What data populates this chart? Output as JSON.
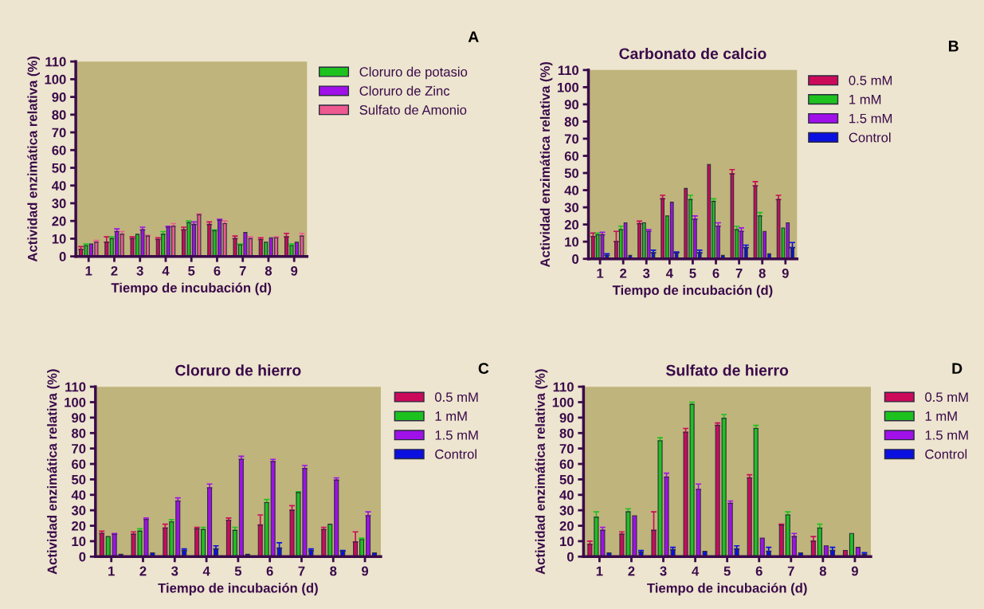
{
  "chart_data": [
    {
      "type": "bar",
      "xlabel": "Tiempo de incubación (d)",
      "ylabel": "Actividad enzimática relativa (%)",
      "annotations": [
        "A"
      ],
      "categories": [
        "1",
        "2",
        "3",
        "4",
        "5",
        "6",
        "7",
        "8",
        "9"
      ],
      "ylim": [
        0,
        110
      ],
      "yticks": [
        0,
        10,
        20,
        30,
        40,
        50,
        60,
        70,
        80,
        90,
        100,
        110
      ],
      "legend": "right",
      "grid": false,
      "series": [
        {
          "color": "#cc0a5a",
          "values": [
            4,
            8,
            10,
            9.5,
            15,
            18,
            10,
            9.5,
            11
          ],
          "errors": [
            [
              4,
              5.5
            ],
            [
              8,
              11
            ],
            [
              10,
              11
            ],
            [
              9.5,
              10.5
            ],
            [
              15,
              16.5
            ],
            [
              18,
              19.5
            ],
            [
              10,
              11.5
            ],
            [
              9.5,
              10.5
            ],
            [
              11,
              13
            ]
          ]
        },
        {
          "name": "Cloruro de potasio",
          "color": "#1ec21e",
          "values": [
            6,
            10,
            12.5,
            12.5,
            19,
            14.5,
            6.5,
            8,
            6
          ],
          "errors": [
            [
              6,
              7
            ],
            [
              10,
              11
            ],
            null,
            [
              12.5,
              14
            ],
            [
              19,
              20
            ],
            [
              14.5,
              15
            ],
            [
              6.5,
              7
            ],
            null,
            [
              6,
              7
            ]
          ]
        },
        {
          "name": "Cloruro de Zinc",
          "color": "#a010e8",
          "values": [
            7,
            14,
            15,
            16.5,
            18,
            20.5,
            13.5,
            10.5,
            8
          ],
          "errors": [
            null,
            [
              14,
              15.5
            ],
            [
              15,
              16.5
            ],
            [
              16.5,
              17
            ],
            [
              18,
              19.5
            ],
            [
              20.5,
              21
            ],
            null,
            null,
            null
          ]
        },
        {
          "name": "Sulfato de Amonio",
          "color": "#ee5a90",
          "values": [
            8,
            12.5,
            11.5,
            17,
            23.5,
            18.5,
            10,
            10.5,
            11.5
          ],
          "errors": [
            [
              8,
              9
            ],
            [
              12.5,
              14
            ],
            [
              11.5,
              12
            ],
            [
              17,
              18.5
            ],
            [
              23.5,
              24
            ],
            [
              18.5,
              20
            ],
            [
              10,
              11
            ],
            [
              10.5,
              11
            ],
            [
              11.5,
              13
            ]
          ]
        }
      ]
    },
    {
      "type": "bar",
      "title": "Carbonato de calcio",
      "xlabel": "Tiempo de incubación (d)",
      "ylabel": "Actividad enzimática relativa (%)",
      "annotations": [
        "B"
      ],
      "categories": [
        "1",
        "2",
        "3",
        "4",
        "5",
        "6",
        "7",
        "8",
        "9"
      ],
      "ylim": [
        0,
        110
      ],
      "yticks": [
        0,
        10,
        20,
        30,
        40,
        50,
        60,
        70,
        80,
        90,
        100,
        110
      ],
      "legend": "right",
      "grid": false,
      "series": [
        {
          "name": "0.5 mM",
          "color": "#cc0a5a",
          "values": [
            13,
            10,
            20.5,
            35,
            41,
            55,
            49.5,
            42.5,
            34.5
          ],
          "errors": [
            [
              13,
              15
            ],
            [
              10,
              16
            ],
            [
              20.5,
              22
            ],
            [
              35,
              37
            ],
            null,
            null,
            [
              49.5,
              52
            ],
            [
              42.5,
              45
            ],
            [
              34.5,
              37
            ]
          ]
        },
        {
          "name": "1 mM",
          "color": "#1ec21e",
          "values": [
            14,
            17,
            21,
            25,
            34.5,
            33.5,
            17,
            25,
            18
          ],
          "errors": [
            [
              14,
              15
            ],
            [
              17,
              19
            ],
            null,
            null,
            [
              34.5,
              37
            ],
            [
              33.5,
              35
            ],
            [
              17,
              19
            ],
            [
              25,
              27
            ],
            null
          ]
        },
        {
          "name": "1.5 mM",
          "color": "#a010e8",
          "values": [
            14,
            21,
            16,
            33,
            23,
            19,
            16,
            16,
            21
          ],
          "errors": [
            [
              14,
              15.5
            ],
            null,
            [
              16,
              17
            ],
            null,
            [
              23,
              25
            ],
            [
              19,
              21
            ],
            [
              16,
              18
            ],
            null,
            null
          ]
        },
        {
          "name": "Control",
          "color": "#0a10e0",
          "values": [
            2,
            2,
            3.5,
            3.5,
            3.5,
            2,
            6.5,
            3,
            6.5
          ],
          "errors": [
            [
              2,
              3
            ],
            null,
            [
              3.5,
              5
            ],
            [
              3.5,
              4
            ],
            [
              3.5,
              5
            ],
            null,
            [
              6.5,
              8
            ],
            null,
            [
              6.5,
              9.5
            ]
          ]
        }
      ]
    },
    {
      "type": "bar",
      "title": "Cloruro de hierro",
      "xlabel": "Tiempo de incubación (d)",
      "ylabel": "Actividad enzimática relativa (%)",
      "annotations": [
        "C"
      ],
      "categories": [
        "1",
        "2",
        "3",
        "4",
        "5",
        "6",
        "7",
        "8",
        "9"
      ],
      "ylim": [
        0,
        110
      ],
      "yticks": [
        0,
        10,
        20,
        30,
        40,
        50,
        60,
        70,
        80,
        90,
        100,
        110
      ],
      "legend": "right",
      "grid": false,
      "series": [
        {
          "name": "0.5 mM",
          "color": "#cc0a5a",
          "values": [
            15,
            14.5,
            18.5,
            18,
            23.5,
            20.5,
            30,
            17.5,
            9.5
          ],
          "errors": [
            [
              15,
              16.5
            ],
            [
              14.5,
              16
            ],
            [
              18.5,
              21
            ],
            [
              18,
              19
            ],
            [
              23.5,
              25
            ],
            [
              20.5,
              27
            ],
            [
              30,
              33
            ],
            [
              17.5,
              19
            ],
            [
              9.5,
              16
            ]
          ]
        },
        {
          "name": "1 mM",
          "color": "#1ec21e",
          "values": [
            13,
            16.5,
            22.5,
            17.5,
            17,
            35,
            41.5,
            21,
            11
          ],
          "errors": [
            null,
            [
              16.5,
              18
            ],
            [
              22.5,
              24
            ],
            [
              17.5,
              19
            ],
            [
              17,
              19
            ],
            [
              35,
              37
            ],
            [
              41.5,
              42
            ],
            null,
            [
              11,
              12
            ]
          ]
        },
        {
          "name": "1.5 mM",
          "color": "#a010e8",
          "values": [
            14.5,
            24,
            36,
            44.5,
            63,
            61.5,
            57,
            49.5,
            26.5
          ],
          "errors": [
            [
              14.5,
              15
            ],
            [
              24,
              25
            ],
            [
              36,
              38
            ],
            [
              44.5,
              47
            ],
            [
              63,
              65
            ],
            [
              61.5,
              63
            ],
            [
              57,
              59
            ],
            [
              49.5,
              51
            ],
            [
              26.5,
              29
            ]
          ]
        },
        {
          "name": "Control",
          "color": "#0a10e0",
          "values": [
            1.5,
            2.5,
            4,
            5,
            1.5,
            5.5,
            4,
            3.5,
            2.5
          ],
          "errors": [
            null,
            null,
            [
              4,
              5
            ],
            [
              5,
              7
            ],
            null,
            [
              5.5,
              9
            ],
            [
              4,
              5
            ],
            [
              3.5,
              4
            ],
            null
          ]
        }
      ]
    },
    {
      "type": "bar",
      "title": "Sulfato de hierro",
      "xlabel": "Tiempo de incubación (d)",
      "ylabel": "Actividad enzimática relativa (%)",
      "annotations": [
        "D"
      ],
      "categories": [
        "1",
        "2",
        "3",
        "4",
        "5",
        "6",
        "7",
        "8",
        "9"
      ],
      "ylim": [
        0,
        110
      ],
      "yticks": [
        0,
        10,
        20,
        30,
        40,
        50,
        60,
        70,
        80,
        90,
        100,
        110
      ],
      "legend": "right",
      "grid": false,
      "series": [
        {
          "name": "0.5 mM",
          "color": "#cc0a5a",
          "values": [
            8,
            14.5,
            17,
            80.5,
            85,
            51,
            20.5,
            10,
            4
          ],
          "errors": [
            [
              8,
              10
            ],
            [
              14.5,
              16
            ],
            [
              17,
              29
            ],
            [
              80.5,
              83
            ],
            [
              85,
              86.5
            ],
            [
              51,
              53
            ],
            [
              20.5,
              21
            ],
            [
              10,
              13
            ],
            null
          ]
        },
        {
          "name": "1 mM",
          "color": "#1ec21e",
          "values": [
            25.5,
            29,
            75,
            98.5,
            89.5,
            83,
            27,
            18.5,
            15
          ],
          "errors": [
            [
              25.5,
              29
            ],
            [
              29,
              31
            ],
            [
              75,
              77
            ],
            [
              98.5,
              100
            ],
            [
              89.5,
              92
            ],
            [
              83,
              85
            ],
            [
              27,
              29
            ],
            [
              18.5,
              21
            ],
            null
          ]
        },
        {
          "name": "1.5 mM",
          "color": "#a010e8",
          "values": [
            17,
            26.5,
            51.5,
            43.5,
            34.5,
            12,
            13,
            7,
            6
          ],
          "errors": [
            [
              17,
              19
            ],
            null,
            [
              51.5,
              54
            ],
            [
              43.5,
              47
            ],
            [
              34.5,
              36
            ],
            null,
            [
              13,
              15
            ],
            null,
            null
          ]
        },
        {
          "name": "Control",
          "color": "#0a10e0",
          "values": [
            2.5,
            3,
            4.5,
            3.5,
            5,
            3.5,
            2.5,
            4,
            1.5
          ],
          "errors": [
            null,
            [
              3,
              4
            ],
            [
              4.5,
              6
            ],
            null,
            [
              5,
              7
            ],
            [
              3.5,
              6
            ],
            null,
            [
              4,
              6
            ],
            [
              1.5,
              2.5
            ]
          ]
        }
      ]
    }
  ]
}
